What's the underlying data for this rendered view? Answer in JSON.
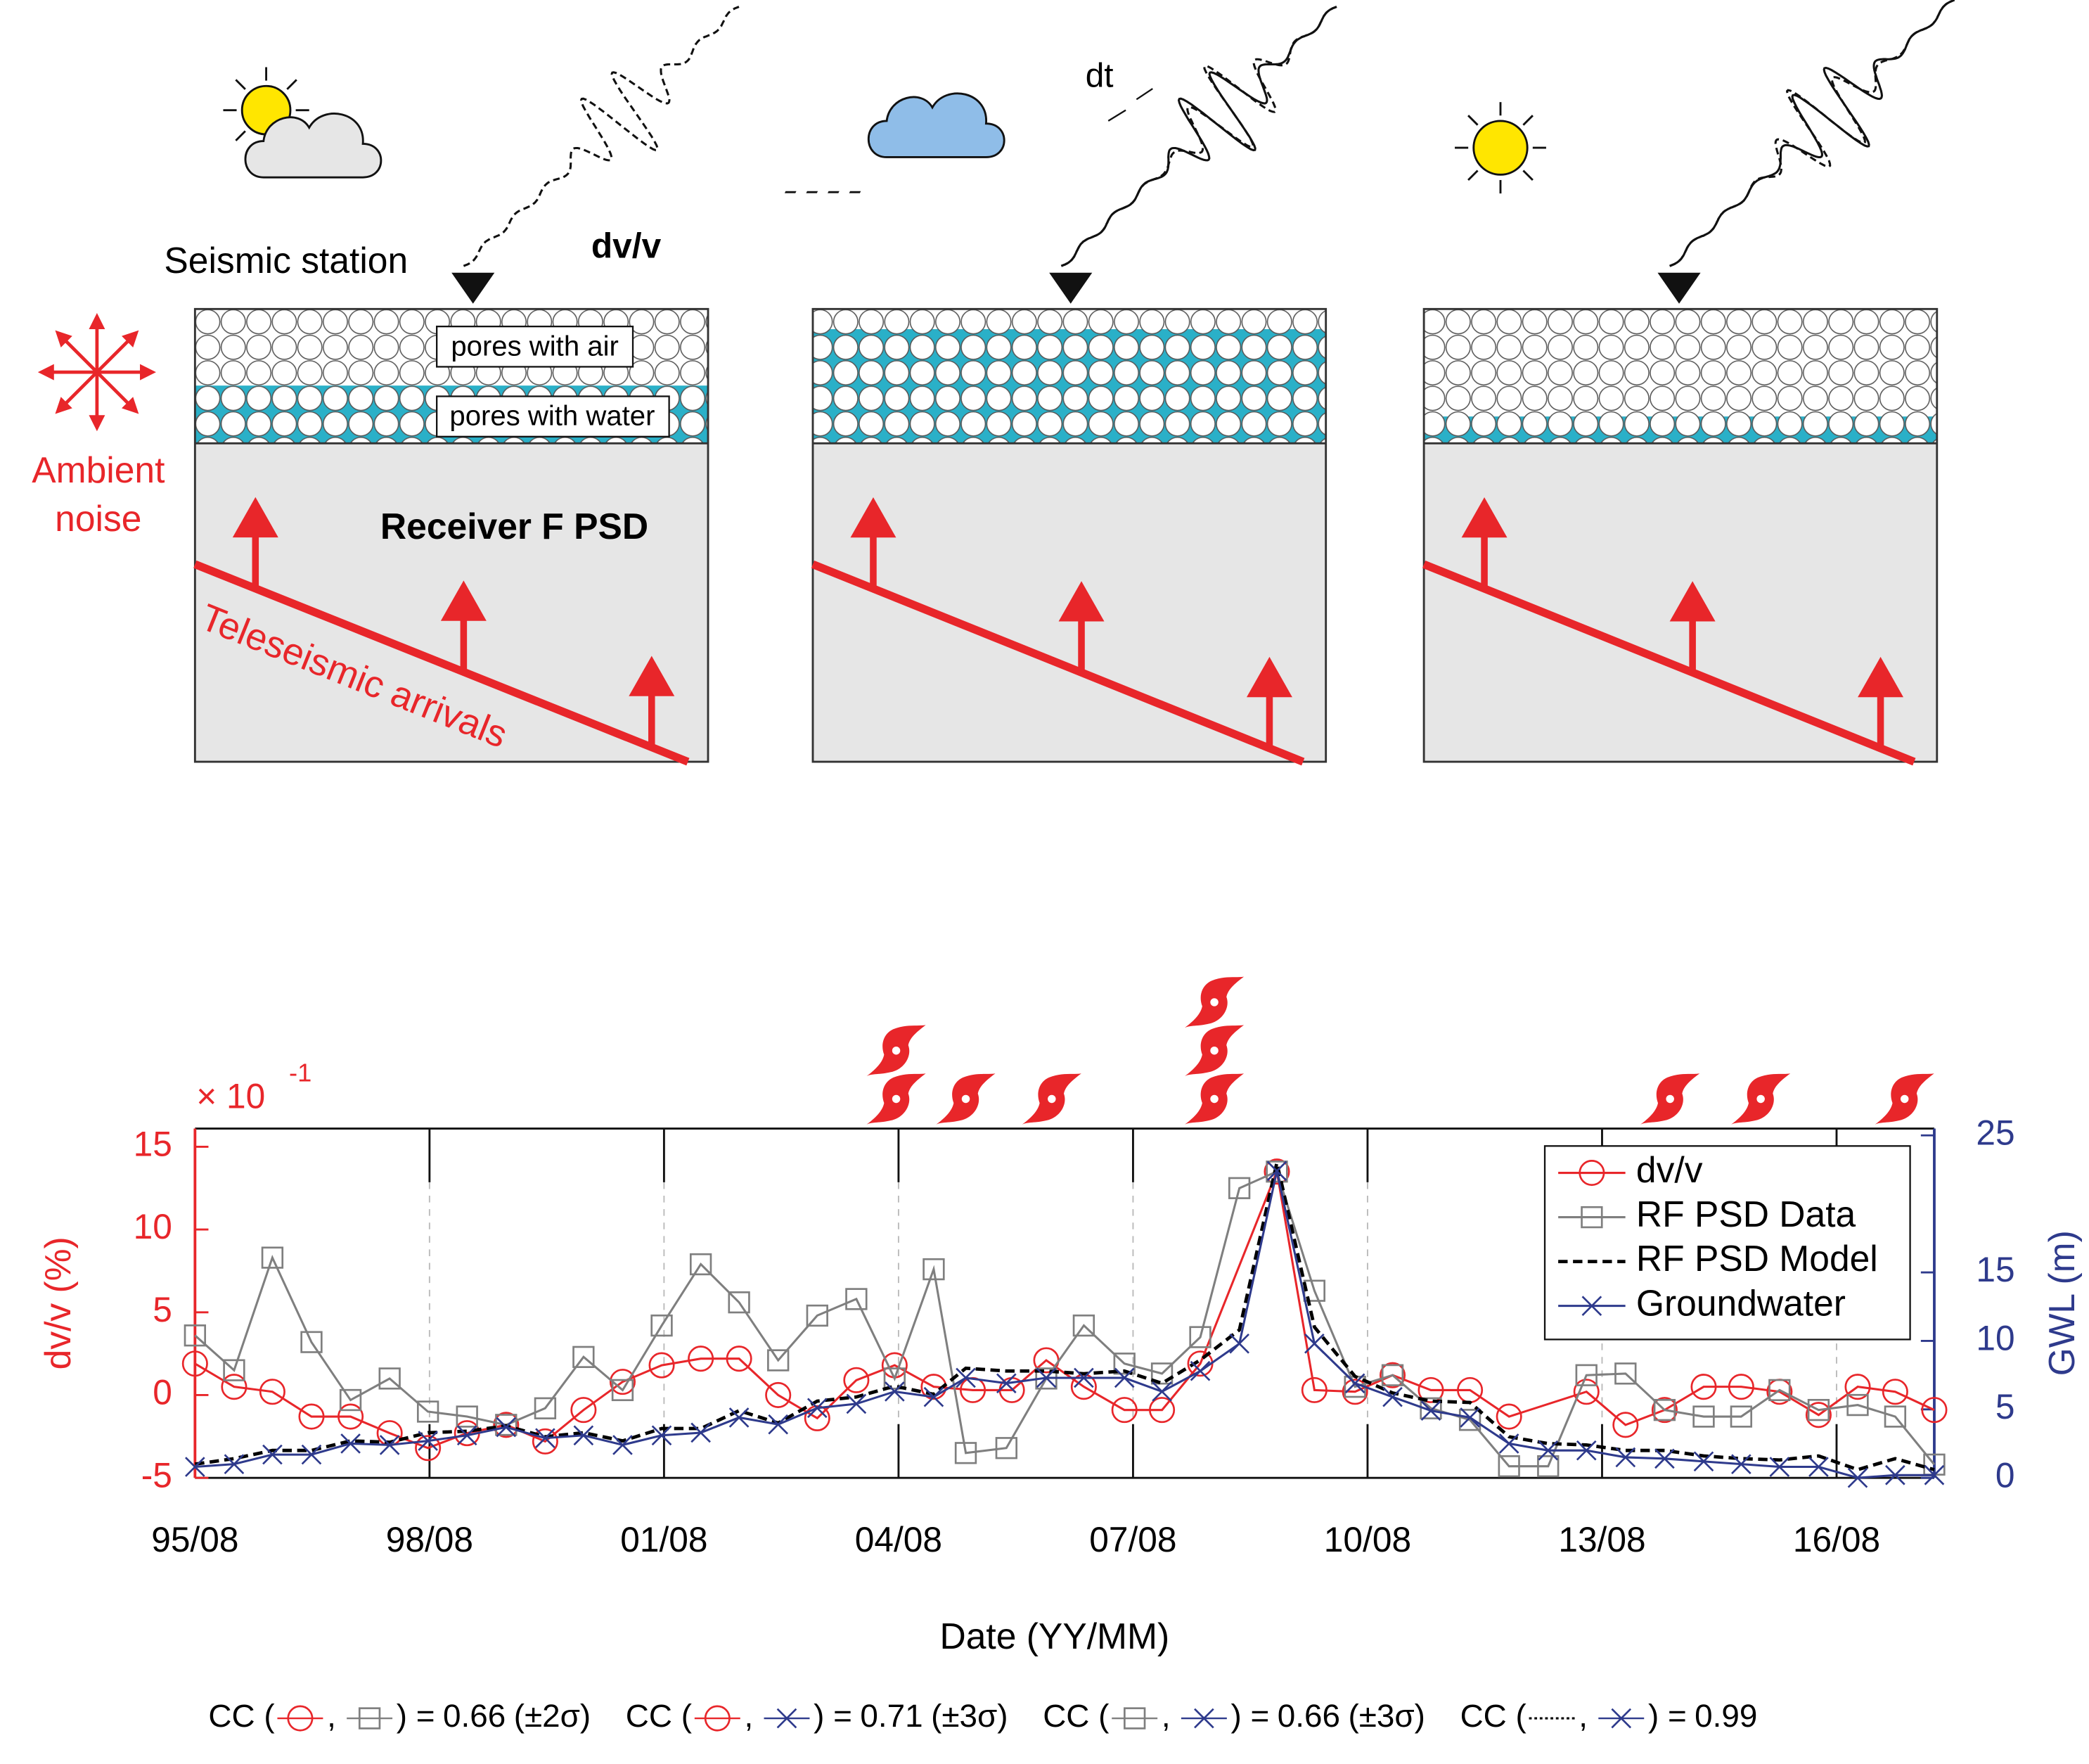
{
  "diagram": {
    "station_label": "Seismic station",
    "dvv": "dv/v",
    "dt": "dt",
    "pores_air": "pores with air",
    "pores_water": "pores with water",
    "rf_psd": "Receiver F PSD",
    "noise": [
      "Ambient",
      "noise"
    ],
    "teleseismic": "Teleseismic arrivals"
  },
  "chart_data": {
    "type": "line",
    "xlabel": "Date (YY/MM)",
    "ylabel": "dv/v (%)",
    "y2label": "GWL (m)",
    "y_multiplier": {
      "base": "× 10",
      "exponent": "-1"
    },
    "xlim": [
      1995.58,
      2017.83
    ],
    "xticks": [
      {
        "value": 1995.58,
        "label": "95/08"
      },
      {
        "value": 1998.58,
        "label": "98/08"
      },
      {
        "value": 2001.58,
        "label": "01/08"
      },
      {
        "value": 2004.58,
        "label": "04/08"
      },
      {
        "value": 2007.58,
        "label": "07/08"
      },
      {
        "value": 2010.58,
        "label": "10/08"
      },
      {
        "value": 2013.58,
        "label": "13/08"
      },
      {
        "value": 2016.58,
        "label": "16/08"
      }
    ],
    "ylim": [
      -5,
      16.1
    ],
    "yticks": [
      -5,
      0,
      5,
      10,
      15
    ],
    "y2lim": [
      0,
      25.5
    ],
    "y2ticks": [
      0,
      5,
      10,
      15,
      25
    ],
    "grid": true,
    "legend": "upper right",
    "series": [
      {
        "name": "dv/v",
        "color": "#e8262a",
        "marker": "circle",
        "axis": "y",
        "x": [
          1995.58,
          1996.08,
          1996.57,
          1997.07,
          1997.57,
          1998.07,
          1998.56,
          1999.06,
          1999.56,
          2000.06,
          2000.55,
          2001.05,
          2001.55,
          2002.05,
          2002.54,
          2003.04,
          2003.54,
          2004.04,
          2004.53,
          2005.03,
          2005.53,
          2006.03,
          2006.47,
          2006.95,
          2007.47,
          2007.95,
          2008.44,
          2009.42,
          2009.9,
          2010.42,
          2010.9,
          2011.39,
          2011.89,
          2012.39,
          2013.38,
          2013.88,
          2014.38,
          2014.88,
          2015.36,
          2015.85,
          2016.35,
          2016.85,
          2017.33,
          2017.83
        ],
        "values": [
          1.9,
          0.5,
          0.2,
          -1.3,
          -1.3,
          -2.3,
          -3.2,
          -2.3,
          -1.8,
          -2.8,
          -0.9,
          0.8,
          1.8,
          2.2,
          2.2,
          0,
          -1.4,
          0.9,
          1.8,
          0.5,
          0.3,
          0.3,
          2.1,
          0.5,
          -0.9,
          -0.9,
          1.9,
          13.5,
          0.3,
          0.2,
          1.2,
          0.3,
          0.3,
          -1.3,
          0.2,
          -1.8,
          -0.9,
          0.5,
          0.5,
          0.2,
          -1.2,
          0.5,
          0.2,
          -0.9
        ]
      },
      {
        "name": "RF PSD Data",
        "color": "#7f7f7f",
        "marker": "square",
        "axis": "y",
        "x": [
          1995.58,
          1996.08,
          1996.57,
          1997.07,
          1997.57,
          1998.07,
          1998.56,
          1999.06,
          1999.56,
          2000.06,
          2000.55,
          2001.05,
          2001.55,
          2002.05,
          2002.54,
          2003.04,
          2003.54,
          2004.04,
          2004.53,
          2005.03,
          2005.44,
          2005.96,
          2006.47,
          2006.95,
          2007.47,
          2007.95,
          2008.44,
          2008.94,
          2009.42,
          2009.9,
          2010.42,
          2010.9,
          2011.39,
          2011.89,
          2012.39,
          2012.89,
          2013.38,
          2013.88,
          2014.38,
          2014.88,
          2015.36,
          2015.85,
          2016.35,
          2016.85,
          2017.33,
          2017.83
        ],
        "values": [
          3.6,
          1.5,
          8.3,
          3.2,
          -0.3,
          1.0,
          -1.0,
          -1.3,
          -1.8,
          -0.8,
          2.3,
          0.3,
          4.2,
          7.9,
          5.6,
          2.1,
          4.8,
          5.8,
          1.0,
          7.6,
          -3.5,
          -3.2,
          1.0,
          4.2,
          1.9,
          1.3,
          3.5,
          12.5,
          13.5,
          6.3,
          0.5,
          1.2,
          -0.8,
          -1.5,
          -4.3,
          -4.3,
          1.2,
          1.3,
          -0.9,
          -1.3,
          -1.3,
          0.3,
          -0.9,
          -0.6,
          -1.3,
          -4.2
        ]
      },
      {
        "name": "RF PSD Model",
        "color": "#000000",
        "marker": "none",
        "dash": true,
        "axis": "y2",
        "x": [
          1995.58,
          1996.08,
          1996.57,
          1997.07,
          1997.57,
          1998.07,
          1998.56,
          1999.06,
          1999.56,
          2000.06,
          2000.55,
          2001.05,
          2001.55,
          2002.05,
          2002.54,
          2003.04,
          2003.54,
          2004.04,
          2004.53,
          2005.03,
          2005.44,
          2005.96,
          2006.47,
          2006.95,
          2007.47,
          2007.95,
          2008.44,
          2008.94,
          2009.42,
          2009.9,
          2010.42,
          2010.9,
          2011.39,
          2011.89,
          2012.39,
          2012.89,
          2013.38,
          2013.88,
          2014.38,
          2014.88,
          2015.36,
          2015.85,
          2016.35,
          2016.85,
          2017.33,
          2017.83
        ],
        "values": [
          1.0,
          1.4,
          2.0,
          2.0,
          2.7,
          2.6,
          3.3,
          3.4,
          3.8,
          3.0,
          3.3,
          2.7,
          3.6,
          3.6,
          4.9,
          4.0,
          5.6,
          5.9,
          6.7,
          6.1,
          8.0,
          7.8,
          7.8,
          7.6,
          7.8,
          6.9,
          8.6,
          10.8,
          23.0,
          11.0,
          7.4,
          6.2,
          5.6,
          5.5,
          3.0,
          2.5,
          2.4,
          2.0,
          2.0,
          1.6,
          1.4,
          1.3,
          1.6,
          0.6,
          1.4,
          0.6
        ]
      },
      {
        "name": "Groundwater",
        "color": "#2e3a8c",
        "marker": "x",
        "axis": "y2",
        "x": [
          1995.58,
          1996.08,
          1996.57,
          1997.07,
          1997.57,
          1998.07,
          1998.56,
          1999.06,
          1999.56,
          2000.06,
          2000.55,
          2001.05,
          2001.55,
          2002.05,
          2002.54,
          2003.04,
          2003.54,
          2004.04,
          2004.53,
          2005.03,
          2005.44,
          2005.96,
          2006.47,
          2006.95,
          2007.47,
          2007.95,
          2008.44,
          2008.94,
          2009.42,
          2009.9,
          2010.42,
          2010.9,
          2011.39,
          2011.89,
          2012.39,
          2012.89,
          2013.38,
          2013.88,
          2014.38,
          2014.88,
          2015.36,
          2015.85,
          2016.35,
          2016.85,
          2017.33,
          2017.83
        ],
        "values": [
          0.8,
          1.0,
          1.7,
          1.7,
          2.5,
          2.4,
          2.7,
          3.1,
          3.7,
          2.9,
          3.1,
          2.4,
          3.1,
          3.3,
          4.4,
          3.9,
          5.1,
          5.4,
          6.3,
          5.9,
          7.3,
          6.9,
          7.3,
          7.3,
          7.3,
          6.3,
          7.8,
          9.8,
          22.4,
          9.8,
          6.9,
          5.9,
          4.9,
          4.4,
          2.5,
          2.0,
          2.0,
          1.5,
          1.4,
          1.2,
          1.0,
          0.8,
          0.8,
          0.0,
          0.2,
          0.2
        ]
      }
    ],
    "typhoons": [
      {
        "x": 2004.55,
        "count": 2
      },
      {
        "x": 2005.44,
        "count": 1
      },
      {
        "x": 2006.54,
        "count": 1
      },
      {
        "x": 2008.62,
        "count": 3
      },
      {
        "x": 2014.45,
        "count": 1
      },
      {
        "x": 2015.61,
        "count": 1
      },
      {
        "x": 2017.45,
        "count": 1
      }
    ],
    "cc": {
      "prefix": "CC (",
      "comma": ",",
      "close": ") =",
      "items": [
        {
          "pair": [
            0,
            1
          ],
          "value": 0.66,
          "note": "(±2σ)"
        },
        {
          "pair": [
            0,
            3
          ],
          "value": 0.71,
          "note": "(±3σ)"
        },
        {
          "pair": [
            1,
            3
          ],
          "value": 0.66,
          "note": "(±3σ)"
        },
        {
          "pair": [
            2,
            3
          ],
          "value": 0.99
        }
      ]
    }
  }
}
